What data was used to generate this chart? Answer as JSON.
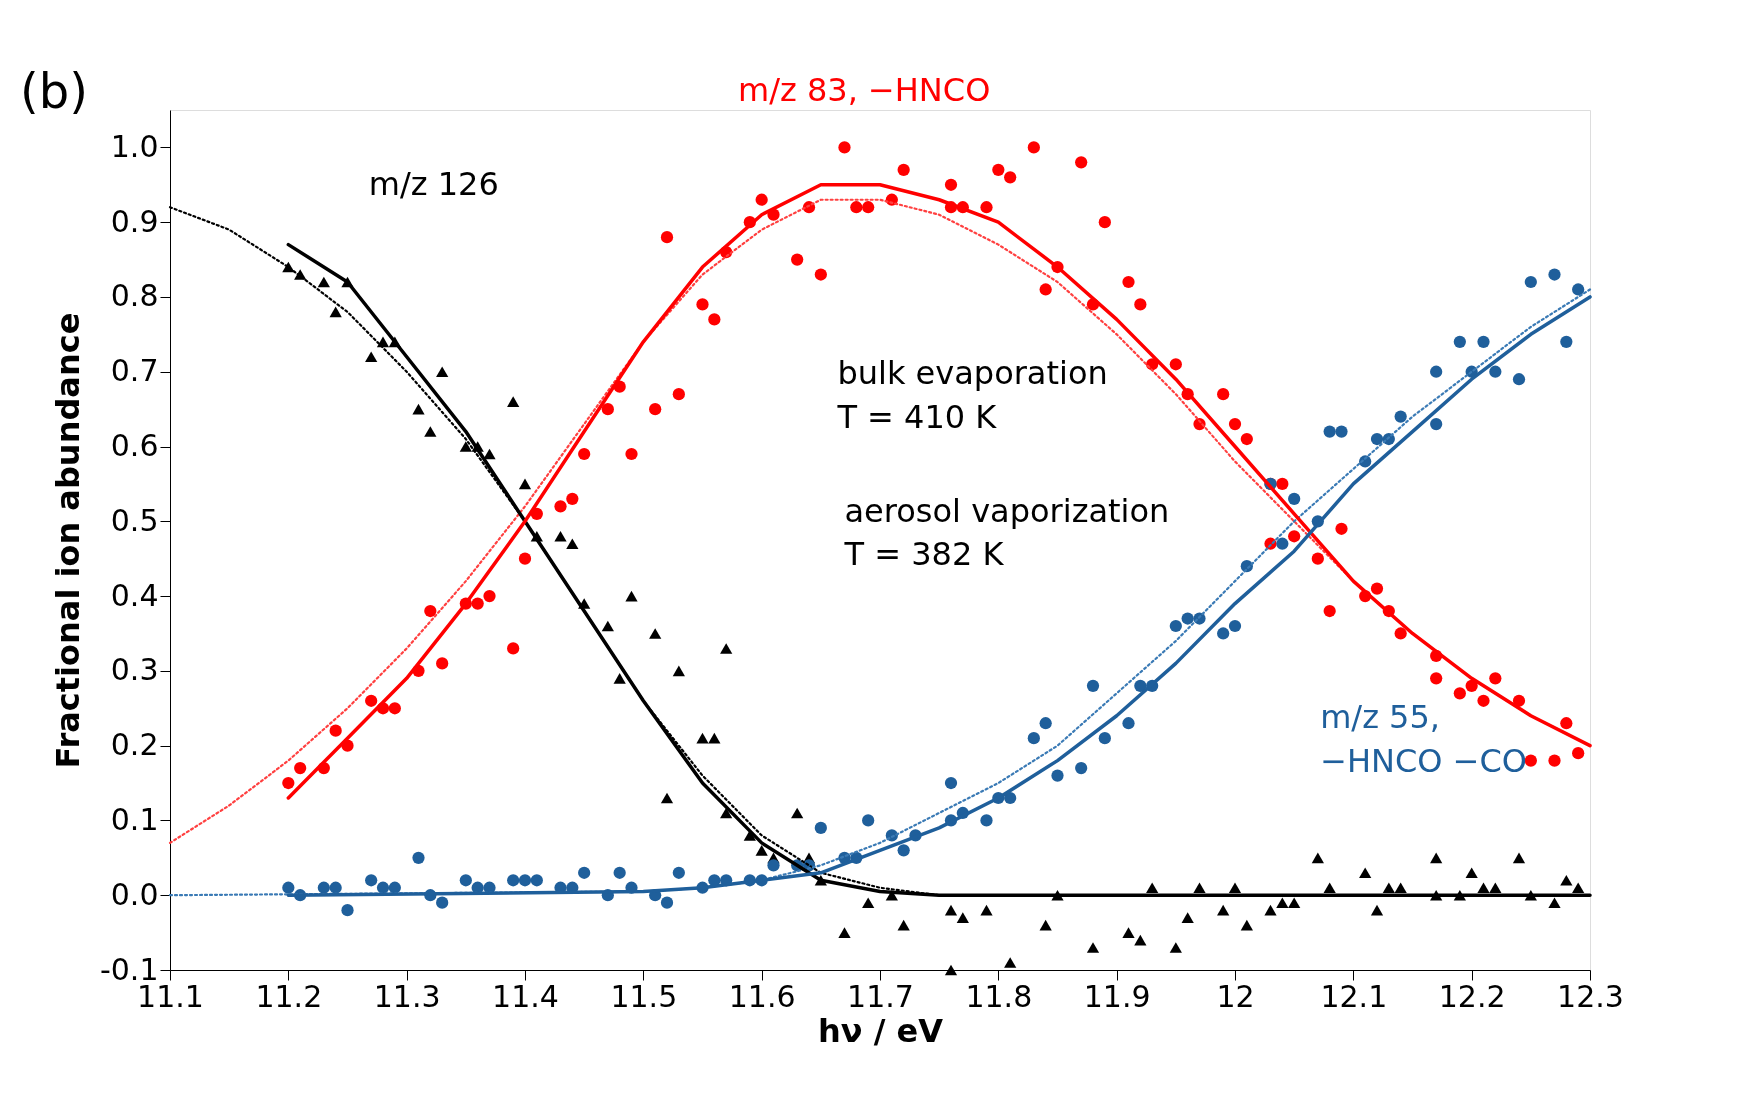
{
  "chart_data": {
    "type": "scatter",
    "xlabel": "hν / eV",
    "ylabel": "Fractional ion abundance",
    "xlim": [
      11.1,
      12.3
    ],
    "ylim": [
      -0.1,
      1.05
    ],
    "xticks": [
      11.1,
      11.2,
      11.3,
      11.4,
      11.5,
      11.6,
      11.7,
      11.8,
      11.9,
      12,
      12.1,
      12.2,
      12.3
    ],
    "yticks": [
      {
        "value": -0.1,
        "label": "-0.1"
      },
      {
        "value": 0,
        "label": "0.0"
      },
      0.1,
      0.2,
      0.3,
      0.4,
      0.5,
      0.6,
      0.7,
      0.8,
      0.9,
      {
        "value": 1,
        "label": "1.0"
      }
    ],
    "grid": false,
    "annotations": [
      "(b)",
      "bulk evaporation\nT = 410 K",
      "aerosol vaporization\nT = 382 K",
      "m/z 126",
      "m/z 83, −HNCO",
      "m/z 55,\n−HNCO −CO"
    ],
    "series": [
      {
        "marker": "triangle",
        "color": "#000000",
        "x": [
          11.2,
          11.21,
          11.23,
          11.24,
          11.25,
          11.27,
          11.28,
          11.29,
          11.31,
          11.32,
          11.33,
          11.35,
          11.36,
          11.37,
          11.39,
          11.4,
          11.41,
          11.43,
          11.44,
          11.45,
          11.47,
          11.48,
          11.49,
          11.51,
          11.52,
          11.53,
          11.55,
          11.56,
          11.57,
          11.57,
          11.59,
          11.6,
          11.61,
          11.63,
          11.64,
          11.65,
          11.67,
          11.69,
          11.71,
          11.72,
          11.76,
          11.76,
          11.77,
          11.79,
          11.81,
          11.84,
          11.85,
          11.88,
          11.91,
          11.92,
          11.93,
          11.95,
          11.96,
          11.97,
          11.99,
          12.0,
          12.01,
          12.03,
          12.04,
          12.05,
          12.07,
          12.08,
          12.11,
          12.12,
          12.13,
          12.14,
          12.17,
          12.17,
          12.19,
          12.2,
          12.21,
          12.22,
          12.24,
          12.25,
          12.27,
          12.28,
          12.29
        ],
        "values": [
          0.84,
          0.83,
          0.82,
          0.78,
          0.82,
          0.72,
          0.74,
          0.74,
          0.65,
          0.62,
          0.7,
          0.6,
          0.6,
          0.59,
          0.66,
          0.55,
          0.48,
          0.48,
          0.47,
          0.39,
          0.36,
          0.29,
          0.4,
          0.35,
          0.13,
          0.3,
          0.21,
          0.21,
          0.33,
          0.11,
          0.08,
          0.06,
          0.05,
          0.11,
          0.05,
          0.02,
          -0.05,
          -0.01,
          0.0,
          -0.04,
          -0.02,
          -0.1,
          -0.03,
          -0.02,
          -0.09,
          -0.04,
          0.0,
          -0.07,
          -0.05,
          -0.06,
          0.01,
          -0.07,
          -0.03,
          0.01,
          -0.02,
          0.01,
          -0.04,
          -0.02,
          -0.01,
          -0.01,
          0.05,
          0.01,
          0.03,
          -0.02,
          0.01,
          0.01,
          0.05,
          0.0,
          0.0,
          0.03,
          0.01,
          0.01,
          0.05,
          0.0,
          -0.01,
          0.02,
          0.01
        ]
      },
      {
        "marker": "circle",
        "color": "#ff0000",
        "x": [
          11.2,
          11.21,
          11.23,
          11.24,
          11.25,
          11.27,
          11.28,
          11.29,
          11.31,
          11.32,
          11.33,
          11.35,
          11.36,
          11.37,
          11.39,
          11.4,
          11.41,
          11.43,
          11.44,
          11.45,
          11.47,
          11.48,
          11.49,
          11.51,
          11.52,
          11.53,
          11.55,
          11.56,
          11.57,
          11.59,
          11.6,
          11.61,
          11.63,
          11.64,
          11.65,
          11.67,
          11.68,
          11.69,
          11.71,
          11.72,
          11.76,
          11.76,
          11.77,
          11.79,
          11.8,
          11.81,
          11.83,
          11.84,
          11.85,
          11.87,
          11.88,
          11.89,
          11.91,
          11.92,
          11.93,
          11.95,
          11.96,
          11.97,
          11.99,
          12.0,
          12.01,
          12.03,
          12.04,
          12.03,
          12.05,
          12.07,
          12.08,
          12.09,
          12.11,
          12.12,
          12.13,
          12.14,
          12.17,
          12.17,
          12.19,
          12.2,
          12.21,
          12.22,
          12.24,
          12.25,
          12.27,
          12.28,
          12.29
        ],
        "values": [
          0.15,
          0.17,
          0.17,
          0.22,
          0.2,
          0.26,
          0.25,
          0.25,
          0.3,
          0.38,
          0.31,
          0.39,
          0.39,
          0.4,
          0.33,
          0.45,
          0.51,
          0.52,
          0.53,
          0.59,
          0.65,
          0.68,
          0.59,
          0.65,
          0.88,
          0.67,
          0.79,
          0.77,
          0.86,
          0.9,
          0.93,
          0.91,
          0.85,
          0.92,
          0.83,
          1.0,
          0.92,
          0.92,
          0.93,
          0.97,
          0.95,
          0.92,
          0.92,
          0.92,
          0.97,
          0.96,
          1.0,
          0.81,
          0.84,
          0.98,
          0.79,
          0.9,
          0.82,
          0.79,
          0.71,
          0.71,
          0.67,
          0.63,
          0.67,
          0.63,
          0.61,
          0.55,
          0.55,
          0.47,
          0.48,
          0.45,
          0.38,
          0.49,
          0.4,
          0.41,
          0.38,
          0.35,
          0.32,
          0.29,
          0.27,
          0.28,
          0.26,
          0.29,
          0.26,
          0.18,
          0.18,
          0.23,
          0.19
        ]
      },
      {
        "marker": "circle",
        "color": "#1f5f9b",
        "x": [
          11.2,
          11.21,
          11.23,
          11.24,
          11.25,
          11.27,
          11.28,
          11.29,
          11.31,
          11.32,
          11.33,
          11.35,
          11.36,
          11.37,
          11.39,
          11.4,
          11.41,
          11.43,
          11.44,
          11.45,
          11.47,
          11.48,
          11.49,
          11.51,
          11.52,
          11.53,
          11.55,
          11.56,
          11.57,
          11.59,
          11.6,
          11.61,
          11.63,
          11.64,
          11.65,
          11.67,
          11.68,
          11.69,
          11.71,
          11.72,
          11.73,
          11.76,
          11.76,
          11.77,
          11.79,
          11.8,
          11.81,
          11.83,
          11.84,
          11.85,
          11.87,
          11.88,
          11.89,
          11.91,
          11.92,
          11.93,
          11.95,
          11.96,
          11.97,
          11.99,
          12.0,
          12.01,
          12.03,
          12.04,
          12.05,
          12.07,
          12.08,
          12.09,
          12.11,
          12.12,
          12.13,
          12.14,
          12.17,
          12.17,
          12.19,
          12.2,
          12.21,
          12.22,
          12.24,
          12.25,
          12.27,
          12.28,
          12.29
        ],
        "values": [
          0.01,
          0.0,
          0.01,
          0.01,
          -0.02,
          0.02,
          0.01,
          0.01,
          0.05,
          0.0,
          -0.01,
          0.02,
          0.01,
          0.01,
          0.02,
          0.02,
          0.02,
          0.01,
          0.01,
          0.03,
          0.0,
          0.03,
          0.01,
          0.0,
          -0.01,
          0.03,
          0.01,
          0.02,
          0.02,
          0.02,
          0.02,
          0.04,
          0.04,
          0.04,
          0.09,
          0.05,
          0.05,
          0.1,
          0.08,
          0.06,
          0.08,
          0.15,
          0.1,
          0.11,
          0.1,
          0.13,
          0.13,
          0.21,
          0.23,
          0.16,
          0.17,
          0.28,
          0.21,
          0.23,
          0.28,
          0.28,
          0.36,
          0.37,
          0.37,
          0.35,
          0.36,
          0.44,
          0.55,
          0.47,
          0.53,
          0.5,
          0.62,
          0.62,
          0.58,
          0.61,
          0.61,
          0.64,
          0.7,
          0.63,
          0.74,
          0.7,
          0.74,
          0.7,
          0.69,
          0.82,
          0.83,
          0.74,
          0.81
        ]
      },
      {
        "type": "line",
        "line_style": "dotted",
        "marker": "none",
        "color": "#000000",
        "x": [
          11.1,
          11.15,
          11.2,
          11.25,
          11.3,
          11.35,
          11.4,
          11.45,
          11.5,
          11.55,
          11.6,
          11.65,
          11.7,
          11.75
        ],
        "values": [
          0.92,
          0.89,
          0.84,
          0.78,
          0.7,
          0.61,
          0.5,
          0.38,
          0.26,
          0.16,
          0.08,
          0.03,
          0.01,
          0.0
        ]
      },
      {
        "type": "line",
        "line_style": "dotted",
        "marker": "none",
        "color": "#ff4040",
        "x": [
          11.1,
          11.15,
          11.2,
          11.25,
          11.3,
          11.35,
          11.4,
          11.45,
          11.5,
          11.55,
          11.6,
          11.65,
          11.7,
          11.75,
          11.8,
          11.85,
          11.9,
          11.95,
          12.0,
          12.05,
          12.1,
          12.15,
          12.2,
          12.25,
          12.3
        ],
        "values": [
          0.07,
          0.12,
          0.18,
          0.25,
          0.33,
          0.42,
          0.52,
          0.63,
          0.74,
          0.83,
          0.89,
          0.93,
          0.93,
          0.91,
          0.87,
          0.82,
          0.75,
          0.67,
          0.58,
          0.5,
          0.42,
          0.35,
          0.29,
          0.24,
          0.2
        ]
      },
      {
        "type": "line",
        "line_style": "dotted",
        "marker": "none",
        "color": "#3a7ab5",
        "x": [
          11.1,
          11.5,
          11.55,
          11.6,
          11.65,
          11.7,
          11.75,
          11.8,
          11.85,
          11.9,
          11.95,
          12.0,
          12.05,
          12.1,
          12.15,
          12.2,
          12.25,
          12.3
        ],
        "values": [
          0.0,
          0.005,
          0.01,
          0.02,
          0.04,
          0.07,
          0.11,
          0.15,
          0.2,
          0.27,
          0.34,
          0.42,
          0.5,
          0.57,
          0.64,
          0.7,
          0.76,
          0.81
        ]
      },
      {
        "type": "line",
        "line_style": "solid",
        "marker": "none",
        "color": "#000000",
        "x": [
          11.2,
          11.25,
          11.3,
          11.35,
          11.4,
          11.45,
          11.5,
          11.55,
          11.6,
          11.65,
          11.7,
          11.75,
          12.3
        ],
        "values": [
          0.87,
          0.82,
          0.72,
          0.62,
          0.5,
          0.38,
          0.26,
          0.15,
          0.07,
          0.02,
          0.005,
          0.0,
          0.0
        ]
      },
      {
        "type": "line",
        "line_style": "solid",
        "marker": "none",
        "color": "#ff0000",
        "x": [
          11.2,
          11.25,
          11.3,
          11.35,
          11.4,
          11.45,
          11.5,
          11.55,
          11.6,
          11.65,
          11.7,
          11.75,
          11.8,
          11.85,
          11.9,
          11.95,
          12.0,
          12.05,
          12.1,
          12.15,
          12.2,
          12.25,
          12.3
        ],
        "values": [
          0.13,
          0.21,
          0.29,
          0.39,
          0.5,
          0.62,
          0.74,
          0.84,
          0.91,
          0.95,
          0.95,
          0.93,
          0.9,
          0.84,
          0.77,
          0.69,
          0.6,
          0.51,
          0.42,
          0.35,
          0.29,
          0.24,
          0.2
        ]
      },
      {
        "type": "line",
        "line_style": "solid",
        "marker": "none",
        "color": "#1f5f9b",
        "x": [
          11.2,
          11.5,
          11.55,
          11.6,
          11.65,
          11.7,
          11.75,
          11.8,
          11.85,
          11.9,
          11.95,
          12.0,
          12.05,
          12.1,
          12.15,
          12.2,
          12.25,
          12.3
        ],
        "values": [
          0.0,
          0.005,
          0.01,
          0.02,
          0.03,
          0.06,
          0.09,
          0.13,
          0.18,
          0.24,
          0.31,
          0.39,
          0.46,
          0.55,
          0.62,
          0.69,
          0.75,
          0.8
        ]
      }
    ]
  }
}
